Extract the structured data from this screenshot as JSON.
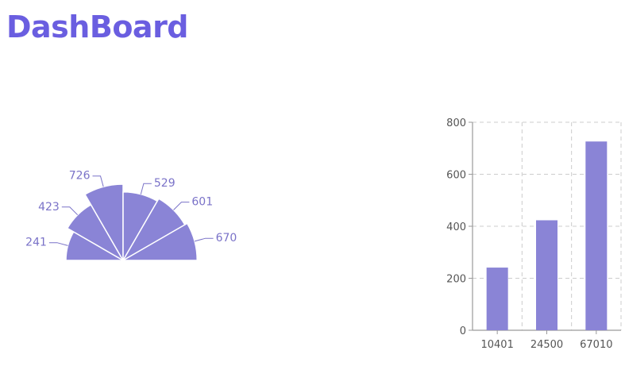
{
  "header": {
    "title": "DashBoard"
  },
  "colors": {
    "title": "#6a5ee0",
    "mark": "#8a84d6",
    "label": "#7a72c8",
    "axis": "#9a9a9a",
    "grid": "#cccccc",
    "tick_text": "#555555"
  },
  "chart_data": [
    {
      "type": "pie",
      "variant": "half-donut",
      "values": [
        241,
        423,
        726,
        529,
        601,
        670
      ],
      "labels": [
        "241",
        "423",
        "726",
        "529",
        "601",
        "670"
      ]
    },
    {
      "type": "bar",
      "categories": [
        "10401",
        "24500",
        "67010"
      ],
      "values": [
        241,
        423,
        726
      ],
      "ylim": [
        0,
        800
      ],
      "yticks": [
        0,
        200,
        400,
        600,
        800
      ],
      "grid": true
    }
  ]
}
